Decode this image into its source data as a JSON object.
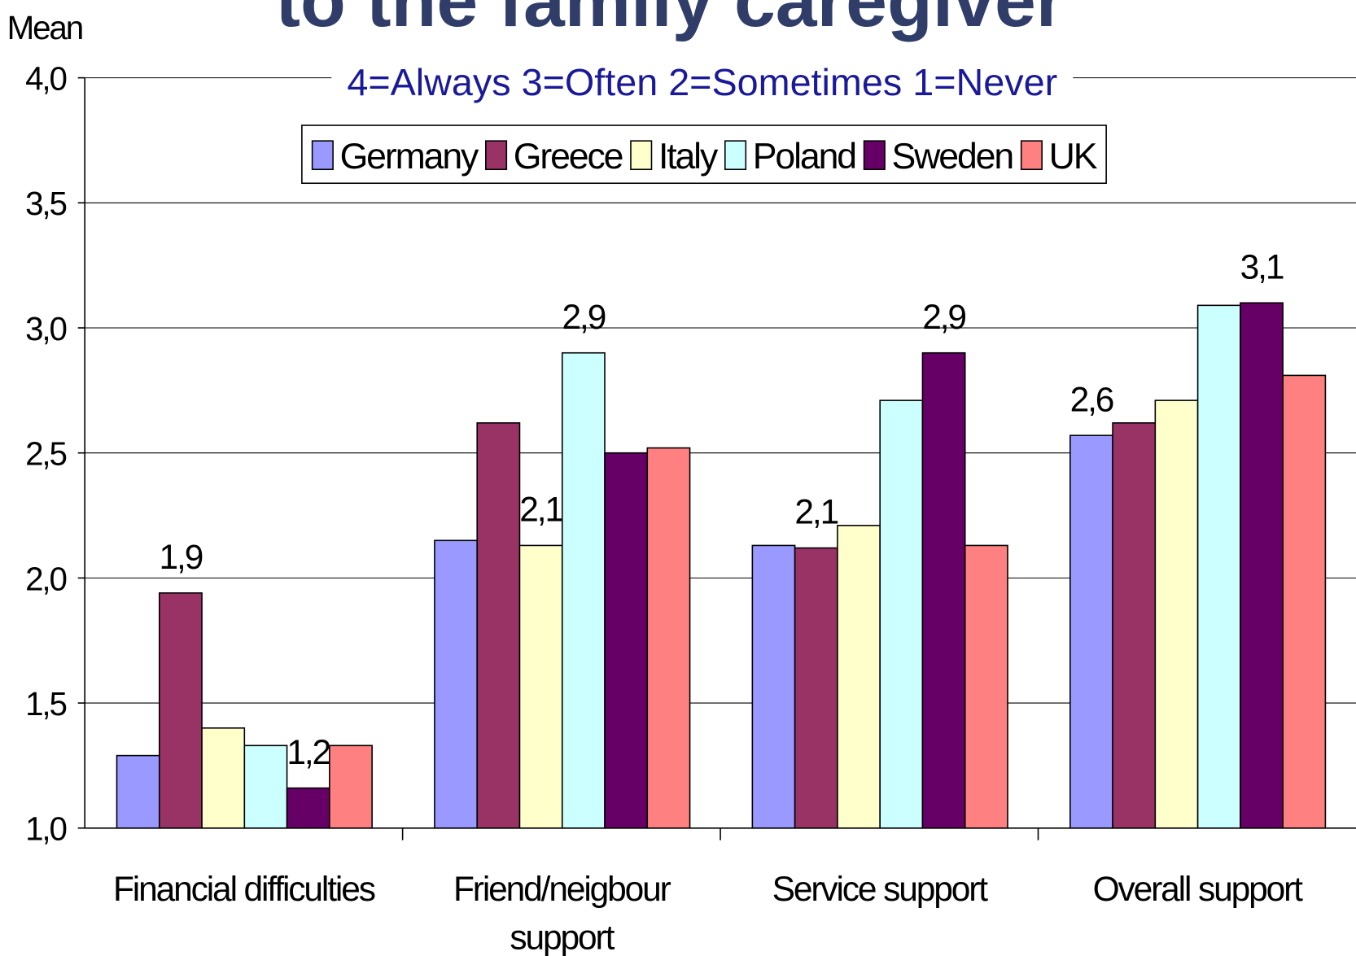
{
  "chart_data": {
    "type": "bar",
    "title": "to the family caregiver",
    "subtitle": "4=Always 3=Often 2=Sometimes 1=Never",
    "y_label": "Mean",
    "categories": [
      "Financial difficulties",
      "Friend/neigbour support",
      "Service support",
      "Overall support"
    ],
    "series": [
      {
        "name": "Germany",
        "color": "#9999ff",
        "values": [
          1.29,
          2.15,
          2.13,
          2.57
        ],
        "value_labels": [
          null,
          null,
          null,
          "2,6"
        ]
      },
      {
        "name": "Greece",
        "color": "#993366",
        "values": [
          1.94,
          2.62,
          2.12,
          2.62
        ],
        "value_labels": [
          "1,9",
          null,
          "2,1",
          null
        ]
      },
      {
        "name": "Italy",
        "color": "#ffffcc",
        "values": [
          1.4,
          2.13,
          2.21,
          2.71
        ],
        "value_labels": [
          null,
          "2,1",
          null,
          null
        ]
      },
      {
        "name": "Poland",
        "color": "#ccffff",
        "values": [
          1.33,
          2.9,
          2.71,
          3.09
        ],
        "value_labels": [
          null,
          "2,9",
          null,
          null
        ]
      },
      {
        "name": "Sweden",
        "color": "#660066",
        "values": [
          1.16,
          2.5,
          2.9,
          3.1
        ],
        "value_labels": [
          "1,2",
          null,
          "2,9",
          "3,1"
        ]
      },
      {
        "name": "UK",
        "color": "#ff8080",
        "values": [
          1.33,
          2.52,
          2.13,
          2.81
        ],
        "value_labels": [
          null,
          null,
          null,
          null
        ]
      }
    ],
    "ylim": [
      1.0,
      4.0
    ],
    "yticks": [
      {
        "value": 1.0,
        "label": "1,0"
      },
      {
        "value": 1.5,
        "label": "1,5"
      },
      {
        "value": 2.0,
        "label": "2,0"
      },
      {
        "value": 2.5,
        "label": "2,5"
      },
      {
        "value": 3.0,
        "label": "3,0"
      },
      {
        "value": 3.5,
        "label": "3,5"
      },
      {
        "value": 4.0,
        "label": "4,0"
      }
    ],
    "grid": true,
    "legend": "top"
  }
}
